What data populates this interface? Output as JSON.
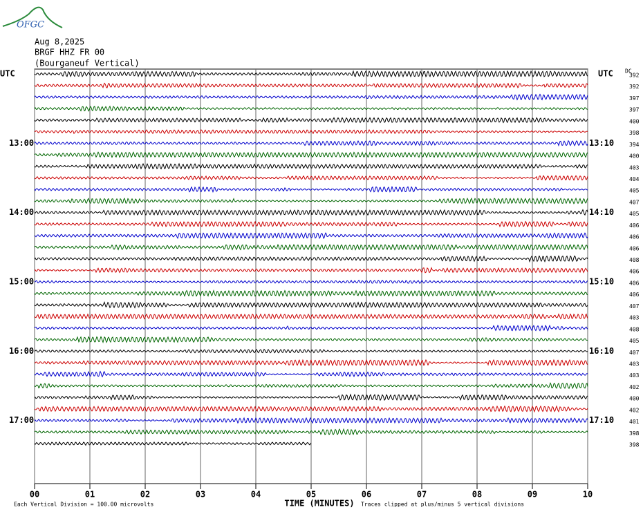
{
  "header": {
    "logo": "OFGC",
    "date": "Aug 8,2025",
    "station": "BRGF HHZ FR 00",
    "location": "(Bourganeuf Vertical)"
  },
  "utc_left": "UTC",
  "utc_right": "UTC",
  "dc_label": "DC",
  "trace_colors": [
    "#000000",
    "#cc0000",
    "#0000cc",
    "#006600"
  ],
  "rows": [
    {
      "dc": 392
    },
    {
      "dc": 392
    },
    {
      "dc": 397
    },
    {
      "dc": 397
    },
    {
      "dc": 400
    },
    {
      "dc": 398
    },
    {
      "dc": 394,
      "left": "13:00",
      "right": "13:10"
    },
    {
      "dc": 400
    },
    {
      "dc": 403
    },
    {
      "dc": 404
    },
    {
      "dc": 405
    },
    {
      "dc": 407
    },
    {
      "dc": 405,
      "left": "14:00",
      "right": "14:10"
    },
    {
      "dc": 406
    },
    {
      "dc": 406
    },
    {
      "dc": 406
    },
    {
      "dc": 408
    },
    {
      "dc": 406
    },
    {
      "dc": 406,
      "left": "15:00",
      "right": "15:10"
    },
    {
      "dc": 406
    },
    {
      "dc": 407
    },
    {
      "dc": 403
    },
    {
      "dc": 408
    },
    {
      "dc": 405
    },
    {
      "dc": 407,
      "left": "16:00",
      "right": "16:10"
    },
    {
      "dc": 403
    },
    {
      "dc": 403
    },
    {
      "dc": 402
    },
    {
      "dc": 400
    },
    {
      "dc": 402
    },
    {
      "dc": 401,
      "left": "17:00",
      "right": "17:10"
    },
    {
      "dc": 398
    },
    {
      "dc": 398
    }
  ],
  "x_axis": {
    "title": "TIME (MINUTES)",
    "xlim": [
      0,
      10
    ],
    "xticks": [
      {
        "value": 0,
        "label": "00"
      },
      {
        "value": 1,
        "label": "01"
      },
      {
        "value": 2,
        "label": "02"
      },
      {
        "value": 3,
        "label": "03"
      },
      {
        "value": 4,
        "label": "04"
      },
      {
        "value": 5,
        "label": "05"
      },
      {
        "value": 6,
        "label": "06"
      },
      {
        "value": 7,
        "label": "07"
      },
      {
        "value": 8,
        "label": "08"
      },
      {
        "value": 9,
        "label": "09"
      },
      {
        "value": 10,
        "label": "10"
      }
    ]
  },
  "footer": {
    "scale": "Each Vertical Division =  100.00 microvolts",
    "clip": "Traces clipped at plus/minus 5 vertical divisions"
  }
}
